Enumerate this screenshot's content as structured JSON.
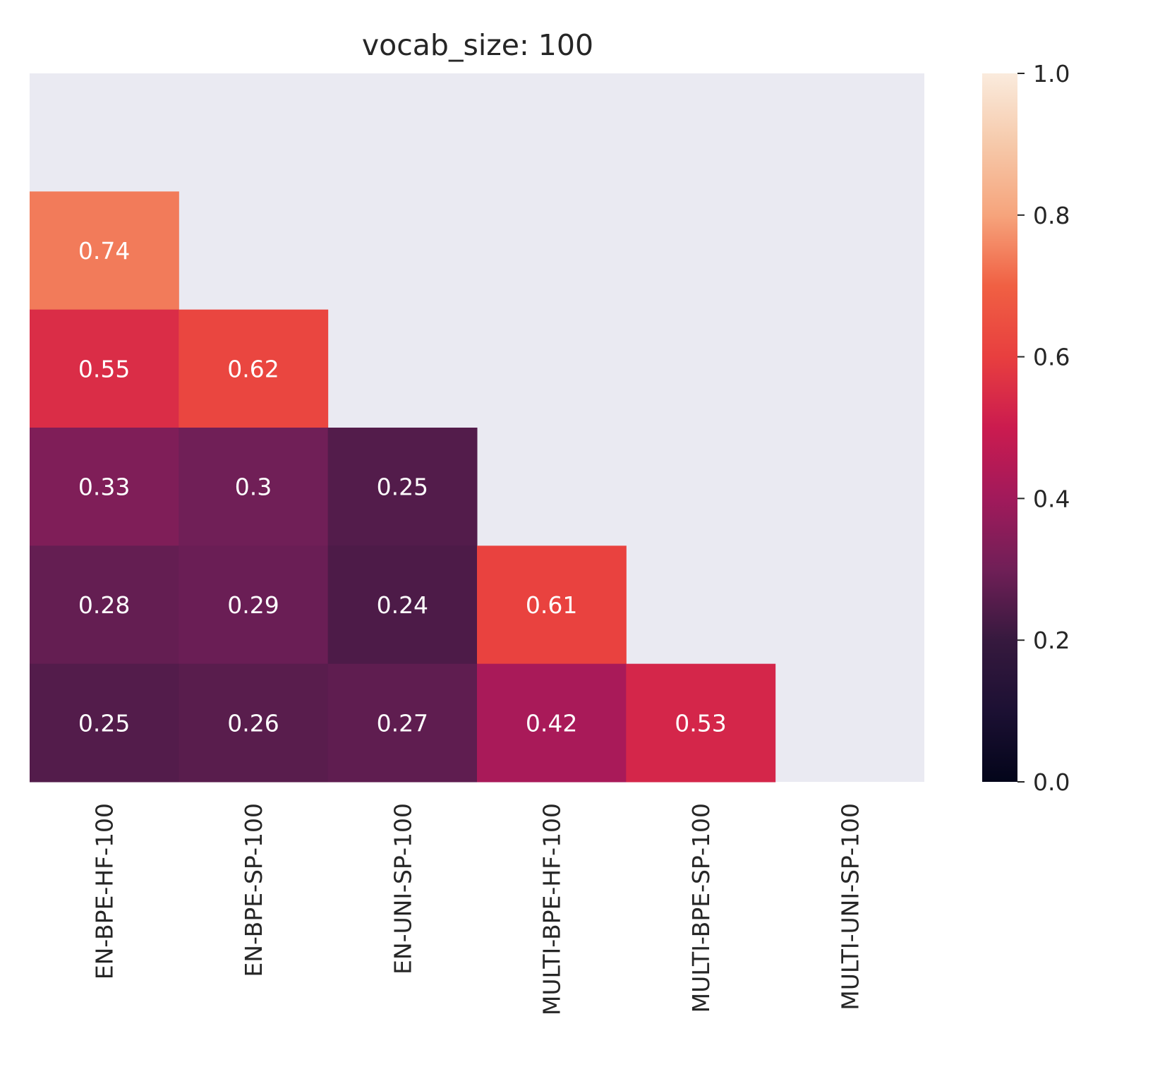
{
  "chart_data": {
    "type": "heatmap",
    "title": "vocab_size: 100",
    "xlabel": "",
    "ylabel": "",
    "x_categories": [
      "EN-BPE-HF-100",
      "EN-BPE-SP-100",
      "EN-UNI-SP-100",
      "MULTI-BPE-HF-100",
      "MULTI-BPE-SP-100",
      "MULTI-UNI-SP-100"
    ],
    "y_categories": [],
    "mask": "upper-triangle-including-diagonal",
    "values": [
      [
        null,
        null,
        null,
        null,
        null,
        null
      ],
      [
        0.74,
        null,
        null,
        null,
        null,
        null
      ],
      [
        0.55,
        0.62,
        null,
        null,
        null,
        null
      ],
      [
        0.33,
        0.3,
        0.25,
        null,
        null,
        null
      ],
      [
        0.28,
        0.29,
        0.24,
        0.61,
        null,
        null
      ],
      [
        0.25,
        0.26,
        0.27,
        0.42,
        0.53,
        null
      ]
    ],
    "cell_labels": [
      [
        null,
        null,
        null,
        null,
        null,
        null
      ],
      [
        "0.74",
        null,
        null,
        null,
        null,
        null
      ],
      [
        "0.55",
        "0.62",
        null,
        null,
        null,
        null
      ],
      [
        "0.33",
        "0.3",
        "0.25",
        null,
        null,
        null
      ],
      [
        "0.28",
        "0.29",
        "0.24",
        "0.61",
        null,
        null
      ],
      [
        "0.25",
        "0.26",
        "0.27",
        "0.42",
        "0.53",
        null
      ]
    ],
    "colorbar": {
      "range": [
        0.0,
        1.0
      ],
      "ticks": [
        0.0,
        0.2,
        0.4,
        0.6,
        0.8,
        1.0
      ],
      "tick_labels": [
        "0.0",
        "0.2",
        "0.4",
        "0.6",
        "0.8",
        "1.0"
      ],
      "colormap": "rocket"
    },
    "colormap_stops": [
      [
        0.0,
        "#03051a"
      ],
      [
        0.1,
        "#1c1033"
      ],
      [
        0.2,
        "#36193e"
      ],
      [
        0.3,
        "#701f57"
      ],
      [
        0.4,
        "#a11a5b"
      ],
      [
        0.5,
        "#cb1b4f"
      ],
      [
        0.6,
        "#e83f3f"
      ],
      [
        0.7,
        "#f06043"
      ],
      [
        0.8,
        "#f6a47c"
      ],
      [
        0.9,
        "#f6c9aa"
      ],
      [
        1.0,
        "#faebdd"
      ]
    ],
    "background_color": "#eaeaf2",
    "label_color": "#ffffff",
    "grid": false,
    "legend": "colorbar-right"
  }
}
